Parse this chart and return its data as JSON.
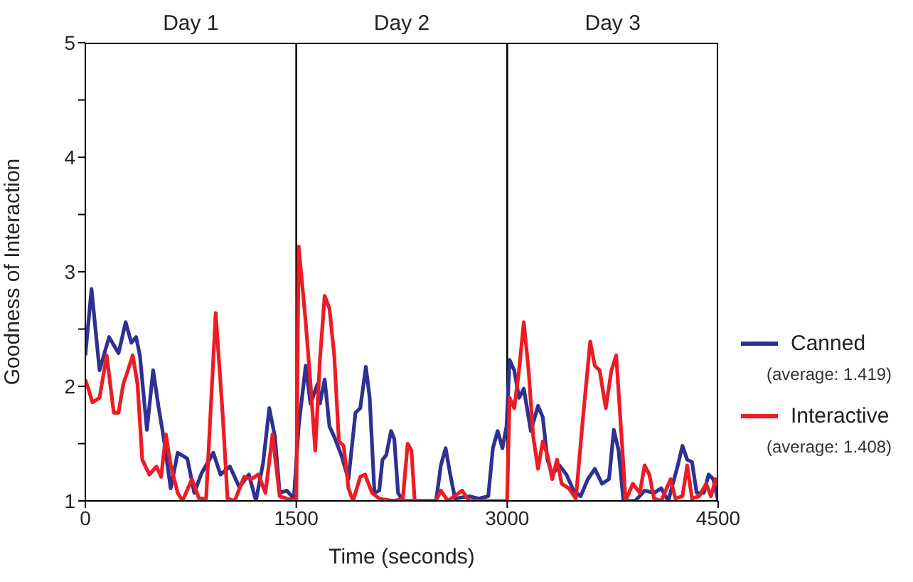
{
  "chart_data": {
    "type": "line",
    "xlabel": "Time (seconds)",
    "ylabel": "Goodness of Interaction",
    "xlim": [
      0,
      4500
    ],
    "xticks": [
      0,
      1500,
      3000,
      4500
    ],
    "ylim": [
      1,
      5
    ],
    "yticks": [
      1,
      {
        "value": 1.5,
        "label": null
      },
      2,
      {
        "value": 2.5,
        "label": null
      },
      3,
      {
        "value": 3.5,
        "label": null
      },
      4,
      {
        "value": 4.5,
        "label": null
      },
      5
    ],
    "grid": false,
    "legend": "right",
    "marker": "none",
    "line_style": "solid",
    "ref_lines": [
      {
        "axis": "x",
        "value": 1500,
        "color": "#000000"
      },
      {
        "axis": "x",
        "value": 3000,
        "color": "#000000"
      }
    ],
    "annotations": [
      "Day 1",
      "Day 2",
      "Day 3",
      "(average: 1.419)",
      "(average: 1.408)"
    ],
    "series": [
      {
        "name": "Canned",
        "color": "#2e3192",
        "x": [
          0,
          44,
          101,
          169,
          236,
          287,
          327,
          361,
          388,
          438,
          482,
          522,
          556,
          607,
          657,
          725,
          775,
          826,
          910,
          961,
          1028,
          1095,
          1163,
          1213,
          1264,
          1308,
          1348,
          1382,
          1432,
          1483,
          1517,
          1567,
          1601,
          1651,
          1668,
          1702,
          1736,
          1770,
          1820,
          1871,
          1921,
          1955,
          1995,
          2022,
          2056,
          2090,
          2113,
          2140,
          2174,
          2197,
          2224,
          2258,
          2494,
          2528,
          2562,
          2595,
          2629,
          2730,
          2797,
          2865,
          2898,
          2932,
          2966,
          2995,
          3017,
          3050,
          3084,
          3118,
          3168,
          3219,
          3253,
          3286,
          3320,
          3371,
          3421,
          3472,
          3522,
          3573,
          3623,
          3674,
          3724,
          3758,
          3792,
          3826,
          3910,
          3977,
          4044,
          4095,
          4145,
          4213,
          4246,
          4280,
          4314,
          4347,
          4398,
          4432,
          4465,
          4500
        ],
        "values": [
          2.27,
          2.85,
          2.14,
          2.43,
          2.29,
          2.56,
          2.38,
          2.43,
          2.27,
          1.62,
          2.14,
          1.81,
          1.56,
          1.11,
          1.42,
          1.37,
          1.07,
          1.24,
          1.42,
          1.23,
          1.3,
          1.12,
          1.23,
          1.0,
          1.33,
          1.81,
          1.56,
          1.07,
          1.09,
          1.02,
          1.65,
          2.18,
          1.85,
          2.02,
          1.85,
          2.06,
          1.65,
          1.56,
          1.4,
          1.19,
          1.77,
          1.81,
          2.17,
          1.9,
          1.07,
          1.09,
          1.36,
          1.4,
          1.61,
          1.54,
          1.07,
          1.0,
          1.0,
          1.31,
          1.46,
          1.23,
          1.02,
          1.04,
          1.02,
          1.04,
          1.46,
          1.61,
          1.46,
          1.65,
          2.23,
          2.14,
          1.9,
          1.98,
          1.61,
          1.83,
          1.73,
          1.36,
          1.23,
          1.31,
          1.23,
          1.09,
          1.04,
          1.19,
          1.28,
          1.15,
          1.19,
          1.62,
          1.44,
          1.0,
          1.0,
          1.09,
          1.07,
          1.11,
          1.0,
          1.31,
          1.48,
          1.36,
          1.34,
          1.07,
          1.07,
          1.23,
          1.19,
          1.0
        ]
      },
      {
        "name": "Interactive",
        "color": "#ed1c24",
        "x": [
          0,
          51,
          101,
          152,
          202,
          236,
          270,
          303,
          337,
          371,
          405,
          455,
          506,
          539,
          573,
          607,
          657,
          691,
          758,
          809,
          859,
          927,
          978,
          1011,
          1062,
          1129,
          1180,
          1230,
          1281,
          1331,
          1382,
          1432,
          1500,
          1517,
          1567,
          1601,
          1635,
          1668,
          1702,
          1736,
          1770,
          1803,
          1837,
          1871,
          1904,
          1955,
          1989,
          2039,
          2090,
          2191,
          2258,
          2292,
          2319,
          2342,
          2494,
          2528,
          2578,
          2679,
          2730,
          2999,
          3017,
          3050,
          3084,
          3118,
          3152,
          3185,
          3219,
          3253,
          3286,
          3320,
          3354,
          3387,
          3438,
          3488,
          3539,
          3590,
          3623,
          3657,
          3701,
          3741,
          3775,
          3815,
          3842,
          3893,
          3943,
          3977,
          4011,
          4044,
          4095,
          4162,
          4196,
          4246,
          4280,
          4314,
          4364,
          4415,
          4449,
          4482,
          4500
        ],
        "values": [
          2.06,
          1.86,
          1.9,
          2.27,
          1.77,
          1.77,
          2.02,
          2.14,
          2.27,
          2.02,
          1.36,
          1.23,
          1.3,
          1.21,
          1.58,
          1.31,
          1.07,
          1.0,
          1.19,
          1.02,
          1.02,
          2.64,
          1.73,
          1.02,
          1.0,
          1.21,
          1.19,
          1.23,
          1.07,
          1.58,
          1.04,
          1.02,
          1.0,
          3.22,
          2.56,
          2.02,
          1.44,
          2.23,
          2.79,
          2.68,
          2.27,
          1.52,
          1.48,
          1.11,
          1.0,
          1.21,
          1.23,
          1.07,
          1.02,
          1.0,
          1.02,
          1.5,
          1.44,
          1.0,
          1.0,
          1.09,
          1.0,
          1.09,
          1.0,
          1.0,
          1.9,
          1.81,
          2.14,
          2.56,
          2.14,
          1.56,
          1.28,
          1.52,
          1.4,
          1.19,
          1.36,
          1.15,
          1.11,
          1.02,
          1.73,
          2.39,
          2.18,
          2.14,
          1.81,
          2.14,
          2.27,
          1.52,
          1.0,
          1.15,
          1.07,
          1.31,
          1.23,
          1.02,
          1.0,
          1.19,
          1.02,
          1.04,
          1.31,
          1.02,
          1.04,
          1.15,
          1.04,
          1.19,
          1.15
        ]
      }
    ]
  }
}
